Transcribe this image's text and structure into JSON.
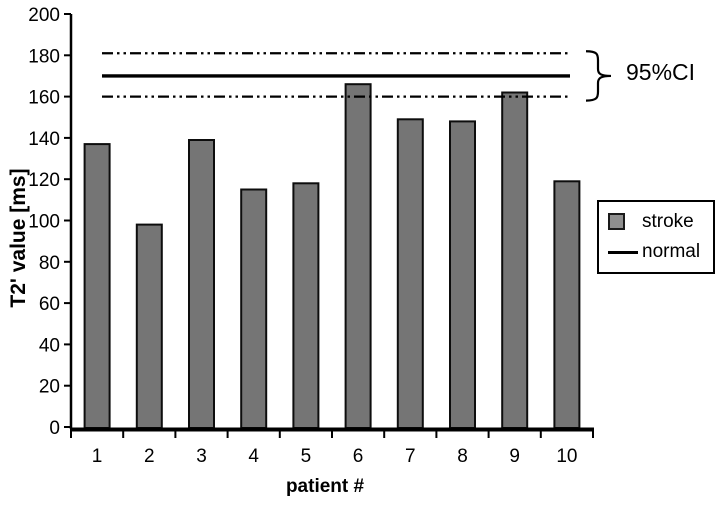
{
  "figure": {
    "background": "#ffffff",
    "y_axis_label": "T2' value [ms]",
    "x_axis_label": "patient #",
    "ci_label": "95%CI"
  },
  "legend": {
    "items": [
      {
        "label": "stroke",
        "swatch": "square",
        "swatch_fill": "#8f8f8f",
        "swatch_border": "#1a1a1a"
      },
      {
        "label": "normal",
        "swatch": "line",
        "swatch_color": "#000000"
      }
    ]
  },
  "chart_data": {
    "type": "bar",
    "title": "",
    "xlabel": "patient #",
    "ylabel": "T2' value [ms]",
    "categories": [
      "1",
      "2",
      "3",
      "4",
      "5",
      "6",
      "7",
      "8",
      "9",
      "10"
    ],
    "series": [
      {
        "name": "stroke",
        "values": [
          137,
          98,
          139,
          115,
          118,
          166,
          149,
          148,
          162,
          119
        ]
      }
    ],
    "reference_lines": {
      "name": "normal",
      "mean": 170,
      "ci_upper": 181,
      "ci_lower": 160,
      "label": "95%CI",
      "mean_style": "solid",
      "ci_style": "dash-dot-dot"
    },
    "ylim": [
      0,
      200
    ],
    "yticks": [
      0,
      20,
      40,
      60,
      80,
      100,
      120,
      140,
      160,
      180,
      200
    ],
    "grid": false,
    "legend_position": "right",
    "bar_color": "#757575",
    "bar_border_color": "#0d0d0d",
    "axis_color": "#000000",
    "text_color": "#000000"
  }
}
